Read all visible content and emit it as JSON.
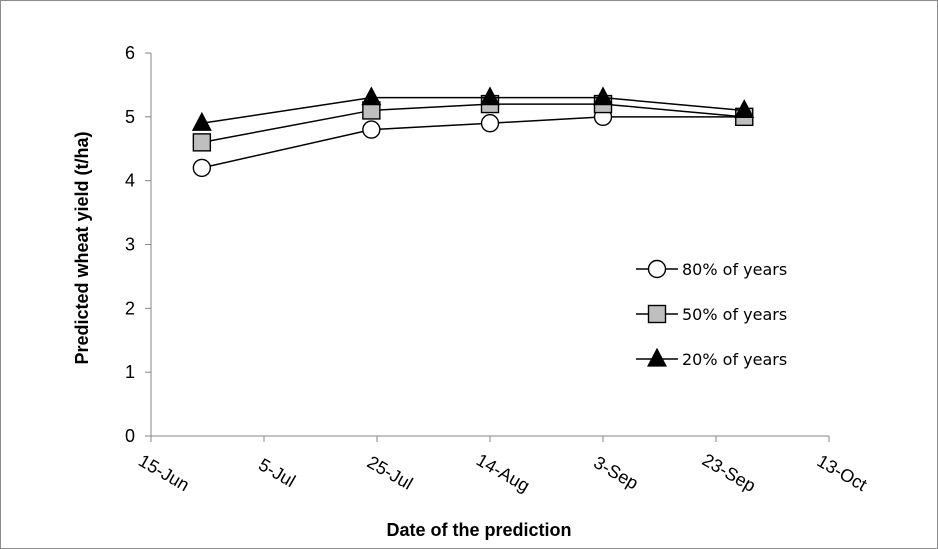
{
  "chart_data": {
    "type": "line",
    "ylabel": "Predicted wheat yield (t/ha)",
    "xlabel": "Date of the prediction",
    "ylim": [
      0,
      6
    ],
    "y_ticks": [
      0,
      1,
      2,
      3,
      4,
      5,
      6
    ],
    "x_ticks": [
      "15-Jun",
      "5-Jul",
      "25-Jul",
      "14-Aug",
      "3-Sep",
      "23-Sep",
      "13-Oct"
    ],
    "x_tick_days": [
      0,
      20,
      40,
      60,
      80,
      100,
      120
    ],
    "x_point_labels": [
      "24-Jun",
      "24-Jul",
      "14-Aug",
      "3-Sep",
      "28-Sep"
    ],
    "x_point_days": [
      9,
      39,
      60,
      80,
      105
    ],
    "grid": false,
    "legend_position": "right",
    "series": [
      {
        "name": "80% of years",
        "marker": "circle",
        "fill": "#ffffff",
        "values": [
          4.2,
          4.8,
          4.9,
          5.0,
          5.0
        ]
      },
      {
        "name": "50% of years",
        "marker": "square",
        "fill": "#bfbfbf",
        "values": [
          4.6,
          5.1,
          5.2,
          5.2,
          5.0
        ]
      },
      {
        "name": "20% of years",
        "marker": "triangle",
        "fill": "#000000",
        "values": [
          4.9,
          5.3,
          5.3,
          5.3,
          5.1
        ]
      }
    ]
  }
}
